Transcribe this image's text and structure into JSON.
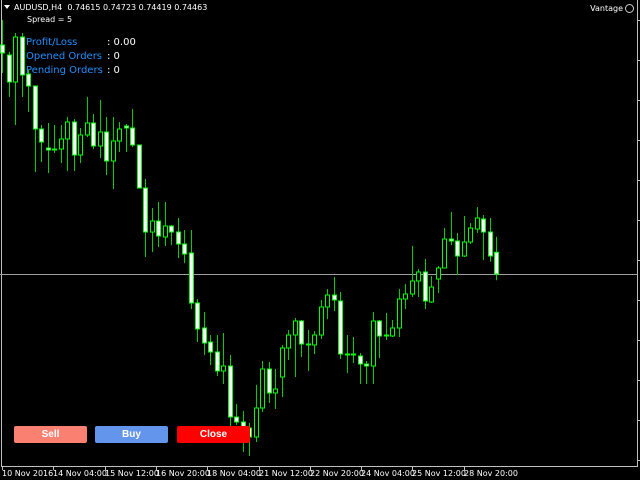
{
  "header": {
    "symbol": "AUDUSD,H4",
    "ohlc": "0.74615 0.74723 0.74419 0.74463",
    "spread": "Spread = 5",
    "broker": "Vantage"
  },
  "info": [
    {
      "label": "Profit/Loss",
      "value": ": 0.00"
    },
    {
      "label": "Opened Orders",
      "value": ": 0"
    },
    {
      "label": "Pending Orders",
      "value": ": 0"
    }
  ],
  "buttons": [
    {
      "label": "Sell",
      "color": "#fa8072"
    },
    {
      "label": "Buy",
      "color": "#6495ed"
    },
    {
      "label": "Close",
      "color": "#ff0000"
    }
  ],
  "colors": {
    "bull_body": "#000000",
    "bear_body": "#ffffff",
    "candle_outline": "#00ff00",
    "wick": "#00d000",
    "bid_line": "#a0a0a0"
  },
  "time_axis": [
    "10 Nov 2016",
    "14 Nov 04:00",
    "15 Nov 12:00",
    "16 Nov 20:00",
    "18 Nov 04:00",
    "21 Nov 12:00",
    "22 Nov 20:00",
    "24 Nov 04:00",
    "25 Nov 12:00",
    "28 Nov 20:00"
  ],
  "chart_data": {
    "type": "candlestick",
    "bid_line": 0.74463,
    "candles_ohlc": [
      [
        0.76066,
        0.76241,
        0.7587,
        0.7601
      ],
      [
        0.75996,
        0.76017,
        0.75702,
        0.75807
      ],
      [
        0.75807,
        0.7615,
        0.75506,
        0.76122
      ],
      [
        0.76122,
        0.7615,
        0.75702,
        0.75856
      ],
      [
        0.75863,
        0.75891,
        0.75597,
        0.75779
      ],
      [
        0.75779,
        0.75779,
        0.75177,
        0.75478
      ],
      [
        0.75478,
        0.75506,
        0.75247,
        0.75387
      ],
      [
        0.75345,
        0.7552,
        0.7517,
        0.75331
      ],
      [
        0.75338,
        0.75506,
        0.7531,
        0.75331
      ],
      [
        0.75338,
        0.75506,
        0.7524,
        0.75408
      ],
      [
        0.75408,
        0.75562,
        0.75184,
        0.75527
      ],
      [
        0.75527,
        0.75548,
        0.75184,
        0.75296
      ],
      [
        0.75296,
        0.75485,
        0.7524,
        0.75436
      ],
      [
        0.75436,
        0.75702,
        0.75422,
        0.7552
      ],
      [
        0.7552,
        0.75583,
        0.75338,
        0.75359
      ],
      [
        0.75359,
        0.75681,
        0.75275,
        0.75457
      ],
      [
        0.75457,
        0.75562,
        0.75156,
        0.75254
      ],
      [
        0.75254,
        0.75562,
        0.75058,
        0.75394
      ],
      [
        0.75394,
        0.75527,
        0.75317,
        0.75478
      ],
      [
        0.75499,
        0.75513,
        0.75317,
        0.75485
      ],
      [
        0.75485,
        0.75618,
        0.75352,
        0.75366
      ],
      [
        0.75366,
        0.75366,
        0.75065,
        0.75065
      ],
      [
        0.75065,
        0.75128,
        0.74582,
        0.74757
      ],
      [
        0.74757,
        0.74925,
        0.74617,
        0.74834
      ],
      [
        0.74834,
        0.74967,
        0.74652,
        0.74729
      ],
      [
        0.74722,
        0.74967,
        0.74659,
        0.74799
      ],
      [
        0.74799,
        0.74806,
        0.74666,
        0.74757
      ],
      [
        0.74757,
        0.74855,
        0.74575,
        0.74673
      ],
      [
        0.74673,
        0.74771,
        0.7454,
        0.74603
      ],
      [
        0.7461,
        0.74771,
        0.74218,
        0.7426
      ],
      [
        0.7426,
        0.74288,
        0.73987,
        0.74078
      ],
      [
        0.74085,
        0.74197,
        0.73896,
        0.7398
      ],
      [
        0.73987,
        0.74036,
        0.73826,
        0.73917
      ],
      [
        0.73917,
        0.74036,
        0.73749,
        0.73784
      ],
      [
        0.73784,
        0.7405,
        0.73693,
        0.73819
      ],
      [
        0.73819,
        0.73896,
        0.73392,
        0.73462
      ],
      [
        0.73462,
        0.73553,
        0.73406,
        0.73427
      ],
      [
        0.73427,
        0.73504,
        0.73217,
        0.73301
      ],
      [
        0.73385,
        0.7342,
        0.73189,
        0.73322
      ],
      [
        0.73322,
        0.73686,
        0.73287,
        0.73525
      ],
      [
        0.73525,
        0.73854,
        0.73497,
        0.73798
      ],
      [
        0.73798,
        0.73847,
        0.7356,
        0.7363
      ],
      [
        0.7363,
        0.73798,
        0.73518,
        0.73658
      ],
      [
        0.73742,
        0.73966,
        0.73602,
        0.73945
      ],
      [
        0.73945,
        0.74071,
        0.73861,
        0.74036
      ],
      [
        0.74036,
        0.74155,
        0.73742,
        0.74134
      ],
      [
        0.74134,
        0.74141,
        0.73882,
        0.73973
      ],
      [
        0.73973,
        0.74071,
        0.73784,
        0.73966
      ],
      [
        0.73966,
        0.74064,
        0.73903,
        0.74036
      ],
      [
        0.74036,
        0.74281,
        0.74008,
        0.74232
      ],
      [
        0.74232,
        0.74358,
        0.74148,
        0.74316
      ],
      [
        0.74316,
        0.74442,
        0.74204,
        0.74281
      ],
      [
        0.74274,
        0.74337,
        0.73868,
        0.73903
      ],
      [
        0.73903,
        0.74036,
        0.7377,
        0.73896
      ],
      [
        0.73903,
        0.74022,
        0.7384,
        0.73896
      ],
      [
        0.73889,
        0.7391,
        0.73693,
        0.73833
      ],
      [
        0.73833,
        0.73854,
        0.73693,
        0.73819
      ],
      [
        0.73819,
        0.74197,
        0.73693,
        0.74134
      ],
      [
        0.74134,
        0.74141,
        0.73875,
        0.74029
      ],
      [
        0.74036,
        0.7419,
        0.74001,
        0.74029
      ],
      [
        0.74029,
        0.74141,
        0.74022,
        0.74085
      ],
      [
        0.74085,
        0.74358,
        0.74022,
        0.74288
      ],
      [
        0.74288,
        0.74393,
        0.74218,
        0.74323
      ],
      [
        0.74323,
        0.74659,
        0.74302,
        0.74414
      ],
      [
        0.74414,
        0.74498,
        0.74302,
        0.74477
      ],
      [
        0.74477,
        0.74568,
        0.74218,
        0.74274
      ],
      [
        0.74267,
        0.74449,
        0.7426,
        0.74372
      ],
      [
        0.74428,
        0.74519,
        0.7433,
        0.74505
      ],
      [
        0.74505,
        0.74785,
        0.74505,
        0.74708
      ],
      [
        0.74708,
        0.74897,
        0.74666,
        0.74694
      ],
      [
        0.74694,
        0.7475,
        0.74456,
        0.74589
      ],
      [
        0.74589,
        0.74869,
        0.74582,
        0.74687
      ],
      [
        0.74687,
        0.7482,
        0.74673,
        0.74785
      ],
      [
        0.74778,
        0.74932,
        0.7475,
        0.74855
      ],
      [
        0.74848,
        0.74876,
        0.74561,
        0.74757
      ],
      [
        0.74757,
        0.74855,
        0.74549,
        0.74589
      ],
      [
        0.74615,
        0.74723,
        0.74419,
        0.74463
      ]
    ]
  }
}
